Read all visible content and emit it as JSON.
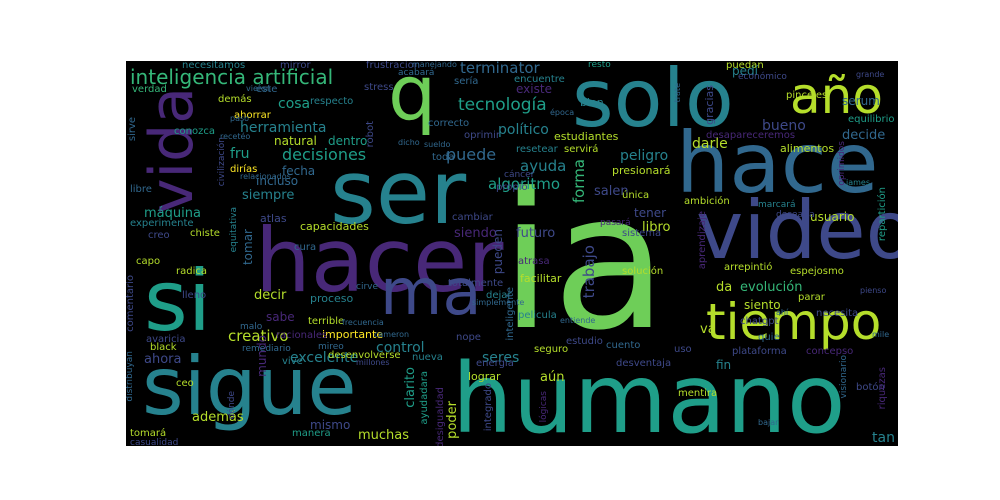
{
  "palette": [
    "#fde725",
    "#b5de2b",
    "#6ece58",
    "#35b779",
    "#1f9e89",
    "#26828e",
    "#31688e",
    "#3e4989",
    "#482878",
    "#440154"
  ],
  "words": [
    {
      "text": "ia",
      "color": "#6ece58"
    },
    {
      "text": "humano",
      "color": "#1f9e89"
    },
    {
      "text": "hacer",
      "color": "#482878"
    },
    {
      "text": "video",
      "color": "#3e4989"
    },
    {
      "text": "solo",
      "color": "#26828e"
    },
    {
      "text": "hace",
      "color": "#31688e"
    },
    {
      "text": "ser",
      "color": "#26828e"
    },
    {
      "text": "sigue",
      "color": "#26828e"
    },
    {
      "text": "vida",
      "color": "#482878"
    },
    {
      "text": "si",
      "color": "#1f9e89"
    },
    {
      "text": "ma",
      "color": "#3e4989"
    },
    {
      "text": "q",
      "color": "#6ece58"
    },
    {
      "text": "tiempo",
      "color": "#b5de2b"
    },
    {
      "text": "año",
      "color": "#b5de2b"
    },
    {
      "text": "inteligencia artificial",
      "color": "#35b779"
    },
    {
      "text": "terminator",
      "color": "#31688e"
    },
    {
      "text": "tecnología",
      "color": "#1f9e89"
    },
    {
      "text": "decisiones",
      "color": "#1f9e89"
    },
    {
      "text": "herramienta",
      "color": "#26828e"
    },
    {
      "text": "puede",
      "color": "#31688e"
    },
    {
      "text": "ayuda",
      "color": "#26828e"
    },
    {
      "text": "forma",
      "color": "#35b779"
    },
    {
      "text": "algoritmo",
      "color": "#1f9e89"
    },
    {
      "text": "trabajo",
      "color": "#3e4989"
    },
    {
      "text": "político",
      "color": "#26828e"
    },
    {
      "text": "peligro",
      "color": "#26828e"
    },
    {
      "text": "siempre",
      "color": "#26828e"
    },
    {
      "text": "máquina",
      "color": "#1f9e89"
    },
    {
      "text": "incluso",
      "color": "#31688e"
    },
    {
      "text": "natural",
      "color": "#b5de2b"
    },
    {
      "text": "cosa",
      "color": "#1f9e89"
    },
    {
      "text": "dentro",
      "color": "#1f9e89"
    },
    {
      "text": "fecha",
      "color": "#31688e"
    },
    {
      "text": "fru",
      "color": "#1f9e89"
    },
    {
      "text": "bueno",
      "color": "#3e4989"
    },
    {
      "text": "serum",
      "color": "#31688e"
    },
    {
      "text": "decide",
      "color": "#31688e"
    },
    {
      "text": "darle",
      "color": "#b5de2b"
    },
    {
      "text": "evolución",
      "color": "#35b779"
    },
    {
      "text": "creativo",
      "color": "#b5de2b"
    },
    {
      "text": "ahora",
      "color": "#3e4989"
    },
    {
      "text": "control",
      "color": "#26828e"
    },
    {
      "text": "seres",
      "color": "#26828e"
    },
    {
      "text": "futuro",
      "color": "#3e4989"
    },
    {
      "text": "libro",
      "color": "#b5de2b"
    },
    {
      "text": "siento",
      "color": "#b5de2b"
    },
    {
      "text": "usuario",
      "color": "#b5de2b"
    },
    {
      "text": "tener",
      "color": "#3e4989"
    },
    {
      "text": "salen",
      "color": "#3e4989"
    },
    {
      "text": "decir",
      "color": "#b5de2b"
    },
    {
      "text": "mundo",
      "color": "#482878"
    },
    {
      "text": "además",
      "color": "#b5de2b"
    },
    {
      "text": "muchas",
      "color": "#b5de2b"
    },
    {
      "text": "mismo",
      "color": "#3e4989"
    },
    {
      "text": "excelente",
      "color": "#26828e"
    },
    {
      "text": "tan",
      "color": "#26828e"
    },
    {
      "text": "poder",
      "color": "#b5de2b"
    },
    {
      "text": "aún",
      "color": "#b5de2b"
    },
    {
      "text": "clarito",
      "color": "#1f9e89"
    },
    {
      "text": "va",
      "color": "#b5de2b"
    },
    {
      "text": "da",
      "color": "#b5de2b"
    },
    {
      "text": "siendo",
      "color": "#482878"
    },
    {
      "text": "importante",
      "color": "#fde725"
    },
    {
      "text": "proceso",
      "color": "#26828e"
    },
    {
      "text": "tomar",
      "color": "#31688e"
    },
    {
      "text": "sabe",
      "color": "#482878"
    },
    {
      "text": "pueden",
      "color": "#3e4989"
    },
    {
      "text": "necesitamos",
      "color": "#26828e"
    },
    {
      "text": "mirror",
      "color": "#3e4989"
    },
    {
      "text": "frustracion",
      "color": "#3e4989"
    },
    {
      "text": "resto",
      "color": "#1f9e89"
    },
    {
      "text": "puedan",
      "color": "#b5de2b"
    },
    {
      "text": "pedí",
      "color": "#26828e"
    },
    {
      "text": "verdad",
      "color": "#35b779"
    },
    {
      "text": "demás",
      "color": "#b5de2b"
    },
    {
      "text": "respecto",
      "color": "#26828e"
    },
    {
      "text": "stress",
      "color": "#3e4989"
    },
    {
      "text": "acabará",
      "color": "#31688e"
    },
    {
      "text": "sería",
      "color": "#31688e"
    },
    {
      "text": "encuentre",
      "color": "#26828e"
    },
    {
      "text": "existe",
      "color": "#482878"
    },
    {
      "text": "bien",
      "color": "#26828e"
    },
    {
      "text": "gracias",
      "color": "#3e4989"
    },
    {
      "text": "económico",
      "color": "#3e4989"
    },
    {
      "text": "grande",
      "color": "#3e4989"
    },
    {
      "text": "equilibrio",
      "color": "#1f9e89"
    },
    {
      "text": "alimentos",
      "color": "#b5de2b"
    },
    {
      "text": "ahorrar",
      "color": "#fde725"
    },
    {
      "text": "conozca",
      "color": "#1f9e89"
    },
    {
      "text": "sirve",
      "color": "#31688e"
    },
    {
      "text": "robot",
      "color": "#3e4989"
    },
    {
      "text": "correcto",
      "color": "#31688e"
    },
    {
      "text": "oprimir",
      "color": "#3e4989"
    },
    {
      "text": "resetear",
      "color": "#26828e"
    },
    {
      "text": "estudiantes",
      "color": "#b5de2b"
    },
    {
      "text": "servirá",
      "color": "#b5de2b"
    },
    {
      "text": "desapareceremos",
      "color": "#482878"
    },
    {
      "text": "presionará",
      "color": "#b5de2b"
    },
    {
      "text": "toda",
      "color": "#31688e"
    },
    {
      "text": "propio",
      "color": "#3e4989"
    },
    {
      "text": "cáncer",
      "color": "#3e4989"
    },
    {
      "text": "única",
      "color": "#b5de2b"
    },
    {
      "text": "ambición",
      "color": "#b5de2b"
    },
    {
      "text": "marcará",
      "color": "#26828e"
    },
    {
      "text": "desearía",
      "color": "#3e4989"
    },
    {
      "text": "repartición",
      "color": "#1f9e89"
    },
    {
      "text": "james",
      "color": "#26828e"
    },
    {
      "text": "oprimidos",
      "color": "#482878"
    },
    {
      "text": "dirías",
      "color": "#fde725"
    },
    {
      "text": "civilización",
      "color": "#3e4989"
    },
    {
      "text": "libre",
      "color": "#31688e"
    },
    {
      "text": "experimente",
      "color": "#26828e"
    },
    {
      "text": "creo",
      "color": "#3e4989"
    },
    {
      "text": "capo",
      "color": "#b5de2b"
    },
    {
      "text": "chiste",
      "color": "#b5de2b"
    },
    {
      "text": "capacidades",
      "color": "#b5de2b"
    },
    {
      "text": "atlas",
      "color": "#3e4989"
    },
    {
      "text": "cambiar",
      "color": "#3e4989"
    },
    {
      "text": "sistema",
      "color": "#3e4989"
    },
    {
      "text": "equitativa",
      "color": "#26828e"
    },
    {
      "text": "radica",
      "color": "#b5de2b"
    },
    {
      "text": "atrasa",
      "color": "#482878"
    },
    {
      "text": "facilitar",
      "color": "#b5de2b"
    },
    {
      "text": "solución",
      "color": "#b5de2b"
    },
    {
      "text": "arrepintió",
      "color": "#b5de2b"
    },
    {
      "text": "espejosmo",
      "color": "#b5de2b"
    },
    {
      "text": "pienso",
      "color": "#3e4989"
    },
    {
      "text": "lleno",
      "color": "#3e4989"
    },
    {
      "text": "comentario",
      "color": "#3e4989"
    },
    {
      "text": "avaricia",
      "color": "#3e4989"
    },
    {
      "text": "black",
      "color": "#b5de2b"
    },
    {
      "text": "terrible",
      "color": "#b5de2b"
    },
    {
      "text": "desenvolverse",
      "color": "#b5de2b"
    },
    {
      "text": "pelicula",
      "color": "#26828e"
    },
    {
      "text": "totalmente",
      "color": "#3e4989"
    },
    {
      "text": "dejar",
      "color": "#26828e"
    },
    {
      "text": "inteligente",
      "color": "#31688e"
    },
    {
      "text": "chatgpt",
      "color": "#3e4989"
    },
    {
      "text": "parar",
      "color": "#b5de2b"
    },
    {
      "text": "necesita",
      "color": "#3e4989"
    },
    {
      "text": "quie",
      "color": "#31688e"
    },
    {
      "text": "plataforma",
      "color": "#3e4989"
    },
    {
      "text": "concepso",
      "color": "#482878"
    },
    {
      "text": "fin",
      "color": "#26828e"
    },
    {
      "text": "uso",
      "color": "#3e4989"
    },
    {
      "text": "desventaja",
      "color": "#3e4989"
    },
    {
      "text": "nope",
      "color": "#3e4989"
    },
    {
      "text": "energía",
      "color": "#3e4989"
    },
    {
      "text": "seguro",
      "color": "#b5de2b"
    },
    {
      "text": "estudio",
      "color": "#3e4989"
    },
    {
      "text": "lograr",
      "color": "#b5de2b"
    },
    {
      "text": "cuento",
      "color": "#31688e"
    },
    {
      "text": "mentira",
      "color": "#b5de2b"
    },
    {
      "text": "vive",
      "color": "#26828e"
    },
    {
      "text": "remediario",
      "color": "#31688e"
    },
    {
      "text": "mireo",
      "color": "#31688e"
    },
    {
      "text": "malo",
      "color": "#31688e"
    },
    {
      "text": "racionales",
      "color": "#482878"
    },
    {
      "text": "ceo",
      "color": "#b5de2b"
    },
    {
      "text": "distribuyan",
      "color": "#31688e"
    },
    {
      "text": "dónde",
      "color": "#3e4989"
    },
    {
      "text": "tomará",
      "color": "#b5de2b"
    },
    {
      "text": "casualidad",
      "color": "#3e4989"
    },
    {
      "text": "manera",
      "color": "#1f9e89"
    },
    {
      "text": "desigualdad",
      "color": "#482878"
    },
    {
      "text": "integrado",
      "color": "#3e4989"
    },
    {
      "text": "ayudadara",
      "color": "#1f9e89"
    },
    {
      "text": "visionario",
      "color": "#31688e"
    },
    {
      "text": "botón",
      "color": "#3e4989"
    },
    {
      "text": "riquezas",
      "color": "#482878"
    },
    {
      "text": "bajar",
      "color": "#31688e"
    },
    {
      "text": "millones",
      "color": "#3e4989"
    },
    {
      "text": "lógicas",
      "color": "#482878"
    },
    {
      "text": "manejando",
      "color": "#31688e"
    },
    {
      "text": "vieron",
      "color": "#31688e"
    },
    {
      "text": "época",
      "color": "#31688e"
    },
    {
      "text": "trate",
      "color": "#31688e"
    },
    {
      "text": "recetéo",
      "color": "#31688e"
    },
    {
      "text": "paso",
      "color": "#31688e"
    },
    {
      "text": "éste",
      "color": "#31688e"
    },
    {
      "text": "relacionados",
      "color": "#31688e"
    },
    {
      "text": "sueldo",
      "color": "#31688e"
    },
    {
      "text": "dicho",
      "color": "#31688e"
    },
    {
      "text": "frecuencia",
      "color": "#31688e"
    },
    {
      "text": "simplemente",
      "color": "#31688e"
    },
    {
      "text": "entiende",
      "color": "#31688e"
    },
    {
      "text": "cameron",
      "color": "#31688e"
    },
    {
      "text": "ahí",
      "color": "#31688e"
    },
    {
      "text": "mile",
      "color": "#31688e"
    },
    {
      "text": "pinceles",
      "color": "#b5de2b"
    },
    {
      "text": "aprendizaje",
      "color": "#482878"
    },
    {
      "text": "pasará",
      "color": "#482878"
    },
    {
      "text": "cirve",
      "color": "#31688e"
    },
    {
      "text": "cura",
      "color": "#31688e"
    },
    {
      "text": "nueva",
      "color": "#26828e"
    }
  ]
}
